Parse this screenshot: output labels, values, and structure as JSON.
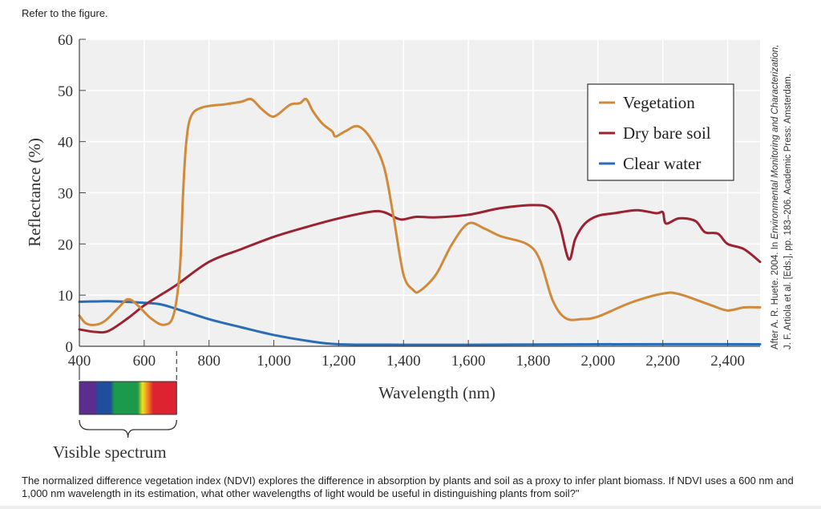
{
  "intro_text": "Refer to the figure.",
  "question_text": "The normalized difference vegetation index (NDVI) explores the difference in absorption by plants and soil as a proxy to infer plant biomass. If NDVI uses a 600 nm and 1,000 nm wavelength in its estimation, what other wavelengths of light would be useful in distinguishing plants from soil?\"",
  "chart_data": {
    "type": "line",
    "title": "",
    "xlabel": "Wavelength (nm)",
    "ylabel": "Reflectance (%)",
    "xlim": [
      400,
      2500
    ],
    "ylim": [
      0,
      60
    ],
    "xticks": [
      400,
      600,
      800,
      1000,
      1200,
      1400,
      1600,
      1800,
      2000,
      2200,
      2400
    ],
    "xtick_labels": [
      "400",
      "600",
      "800",
      "1,000",
      "1,200",
      "1,400",
      "1,600",
      "1,800",
      "2,000",
      "2,200",
      "2,400"
    ],
    "yticks": [
      0,
      10,
      20,
      30,
      40,
      50,
      60
    ],
    "ytick_labels": [
      "0",
      "10",
      "20",
      "30",
      "40",
      "50",
      "60"
    ],
    "grid": true,
    "legend_placement": "top-right",
    "series": [
      {
        "name": "Vegetation",
        "color": "#d08a3c",
        "x": [
          400,
          420,
          450,
          480,
          520,
          550,
          580,
          620,
          660,
          690,
          710,
          720,
          730,
          745,
          780,
          850,
          900,
          930,
          960,
          990,
          1010,
          1050,
          1080,
          1100,
          1120,
          1150,
          1180,
          1190,
          1220,
          1260,
          1300,
          1340,
          1370,
          1400,
          1430,
          1450,
          1500,
          1550,
          1600,
          1650,
          1700,
          1780,
          1820,
          1860,
          1900,
          1950,
          2000,
          2100,
          2200,
          2250,
          2350,
          2400,
          2450,
          2500
        ],
        "y": [
          6,
          4.5,
          4.2,
          5,
          7.5,
          9.2,
          8,
          5.5,
          4.2,
          6,
          15,
          30,
          40,
          45,
          46.7,
          47.3,
          47.8,
          48.3,
          46.5,
          45,
          45.2,
          47.2,
          47.5,
          48.3,
          46,
          43.5,
          42,
          41,
          42,
          43,
          40.5,
          35,
          25,
          14,
          11,
          10.8,
          14,
          20,
          24,
          23,
          21.5,
          20,
          17,
          9,
          5.5,
          5.3,
          5.8,
          8.5,
          10.3,
          10.2,
          8,
          7,
          7.6,
          7.6
        ]
      },
      {
        "name": "Dry bare soil",
        "color": "#9b2230",
        "x": [
          400,
          450,
          490,
          550,
          600,
          650,
          700,
          800,
          900,
          1000,
          1100,
          1200,
          1300,
          1340,
          1380,
          1400,
          1440,
          1500,
          1600,
          1700,
          1800,
          1850,
          1880,
          1910,
          1930,
          1960,
          2000,
          2050,
          2120,
          2180,
          2200,
          2210,
          2250,
          2300,
          2330,
          2370,
          2400,
          2450,
          2500
        ],
        "y": [
          3.3,
          2.8,
          3,
          5.5,
          8,
          10,
          12,
          16.5,
          19,
          21.4,
          23.3,
          25,
          26.3,
          26.2,
          25,
          24.8,
          25.3,
          25.2,
          25.7,
          27,
          27.6,
          27,
          24,
          17,
          21,
          24,
          25.5,
          26,
          26.6,
          26,
          26.2,
          24,
          25,
          24.5,
          22.3,
          22,
          20,
          19,
          16.5
        ]
      },
      {
        "name": "Clear water",
        "color": "#2a6db5",
        "x": [
          400,
          500,
          600,
          650,
          700,
          800,
          900,
          1000,
          1100,
          1200,
          1400,
          1600,
          2000,
          2500
        ],
        "y": [
          8.7,
          8.8,
          8.5,
          8.2,
          7.3,
          5.3,
          3.7,
          2.2,
          1.1,
          0.4,
          0.3,
          0.3,
          0.4,
          0.4
        ]
      }
    ],
    "annotations": {
      "visible_spectrum_label": "Visible spectrum",
      "visible_range": [
        400,
        700
      ],
      "spectrum_colors": [
        "#5b2d8e",
        "#1f4e9c",
        "#1a9a4a",
        "#f5e21a",
        "#f08a24",
        "#dd2230"
      ],
      "source_line1_prefix": "After A. R. Huete. 2004. In ",
      "source_line1_italic": "Environmental Monitoring and Characterization,",
      "source_line2": "J. F. Artiola et al. [Eds.], pp. 183–206. Academic Press: Amsterdam."
    }
  }
}
